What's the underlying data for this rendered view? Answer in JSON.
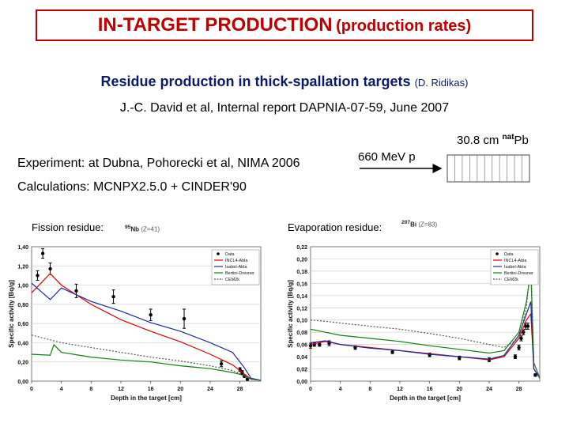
{
  "title": {
    "main": "IN-TARGET PRODUCTION",
    "sub": "(production rates)"
  },
  "subtitle": {
    "text": "Residue production in thick-spallation targets",
    "author": "(D. Ridikas)"
  },
  "reference": "J.-C. David et al, Internal report DAPNIA-07-59, June 2007",
  "experiment": "Experiment: at Dubna, Pohorecki et al, NIMA 2006",
  "calculations": "Calculations: MCNPX2.5.0 + CINDER'90",
  "beam": {
    "label": "660 MeV p"
  },
  "target": {
    "length": "30.8 cm",
    "mass": "nat",
    "element": "Pb"
  },
  "panels": [
    {
      "label": "Fission residue:",
      "nuclide": "95Nb",
      "nuclide_mass": "95",
      "nuclide_symbol": "Nb",
      "nuclide_z": "(Z=41)"
    },
    {
      "label": "Evaporation residue:",
      "nuclide": "207Bi",
      "nuclide_mass": "207",
      "nuclide_symbol": "Bi",
      "nuclide_z": "(Z=83)"
    }
  ],
  "colors": {
    "title": "#c00000",
    "subtitle": "#0a1a66",
    "data": "#000000",
    "incl_abla": "#e00000",
    "isabel_abla": "#1a2a9a",
    "bertini_dresner": "#108010",
    "cem2k": "#555555"
  },
  "chart_data": [
    {
      "type": "line",
      "xlabel": "Depth in the target [cm]",
      "ylabel": "Specific activity [Bq/g]",
      "xlim": [
        0,
        30.8
      ],
      "ylim": [
        0,
        1.4
      ],
      "xticks": [
        "0",
        "4",
        "8",
        "12",
        "16",
        "20",
        "24",
        "28"
      ],
      "yticks": [
        "0,00",
        "0,20",
        "0,40",
        "0,60",
        "0,80",
        "1,00",
        "1,20",
        "1,40"
      ],
      "grid": true,
      "legend": "top-right",
      "series": [
        {
          "name": "Data",
          "style": "points",
          "x": [
            0.8,
            1.5,
            2.5,
            6,
            11,
            16,
            20.5,
            25.5,
            28,
            28.3,
            28.6,
            29
          ],
          "y": [
            1.1,
            1.33,
            1.17,
            0.94,
            0.88,
            0.69,
            0.65,
            0.18,
            0.12,
            0.09,
            0.05,
            0.02
          ],
          "err": [
            0.05,
            0.05,
            0.06,
            0.07,
            0.07,
            0.06,
            0.1,
            0.03,
            0.02,
            0.02,
            0.01,
            0.01
          ]
        },
        {
          "name": "INCL4-Abla",
          "style": "solid",
          "x": [
            0,
            2.5,
            4,
            8,
            12,
            16,
            20,
            24,
            27,
            28.5,
            29.5,
            30.8
          ],
          "y": [
            0.92,
            1.12,
            1.0,
            0.8,
            0.64,
            0.52,
            0.41,
            0.28,
            0.17,
            0.08,
            0.02,
            0.01
          ]
        },
        {
          "name": "Isabel-Abla",
          "style": "solid",
          "x": [
            0,
            2.5,
            4,
            8,
            12,
            16,
            20,
            24,
            27,
            28.5,
            29.5,
            30.8
          ],
          "y": [
            1.02,
            0.85,
            0.97,
            0.83,
            0.73,
            0.61,
            0.52,
            0.4,
            0.3,
            0.15,
            0.03,
            0.01
          ]
        },
        {
          "name": "Bertini-Dresner",
          "style": "solid",
          "x": [
            0,
            2.5,
            3,
            4,
            8,
            12,
            16,
            20,
            24,
            27,
            28.5,
            29.5,
            30.8
          ],
          "y": [
            0.28,
            0.27,
            0.38,
            0.3,
            0.25,
            0.22,
            0.2,
            0.16,
            0.13,
            0.09,
            0.06,
            0.02,
            0.01
          ]
        },
        {
          "name": "CEM2k",
          "style": "dotted",
          "x": [
            0,
            2.5,
            4,
            8,
            12,
            16,
            20,
            24,
            27,
            28.5,
            29.5,
            30.8
          ],
          "y": [
            0.48,
            0.43,
            0.4,
            0.35,
            0.3,
            0.25,
            0.21,
            0.16,
            0.11,
            0.06,
            0.02,
            0.01
          ]
        }
      ]
    },
    {
      "type": "line",
      "xlabel": "Depth in the target [cm]",
      "ylabel": "Specific activity [Bq/g]",
      "xlim": [
        0,
        30.8
      ],
      "ylim": [
        0,
        0.22
      ],
      "xticks": [
        "0",
        "4",
        "8",
        "12",
        "16",
        "20",
        "24",
        "28"
      ],
      "yticks": [
        "0,00",
        "0,02",
        "0,04",
        "0,06",
        "0,08",
        "0,10",
        "0,12",
        "0,14",
        "0,16",
        "0,18",
        "0,20",
        "0,22"
      ],
      "grid": true,
      "legend": "top-right",
      "series": [
        {
          "name": "Data",
          "style": "points",
          "x": [
            0,
            0.5,
            1.2,
            2.5,
            6,
            11,
            16,
            20,
            24,
            27.5,
            28,
            28.3,
            28.6,
            28.9,
            29.2,
            29.6,
            30.2
          ],
          "y": [
            0.058,
            0.06,
            0.06,
            0.062,
            0.055,
            0.048,
            0.043,
            0.038,
            0.035,
            0.04,
            0.055,
            0.07,
            0.08,
            0.09,
            0.09,
            0.2,
            0.01
          ],
          "err": [
            0.004,
            0.003,
            0.003,
            0.004,
            0.003,
            0.003,
            0.003,
            0.003,
            0.003,
            0.003,
            0.004,
            0.004,
            0.004,
            0.005,
            0.005,
            0.01,
            0.002
          ]
        },
        {
          "name": "INCL4-Abla",
          "style": "solid",
          "x": [
            0,
            2,
            4,
            8,
            12,
            16,
            20,
            24,
            26,
            28,
            29,
            29.6,
            30,
            30.8
          ],
          "y": [
            0.06,
            0.065,
            0.06,
            0.055,
            0.05,
            0.045,
            0.04,
            0.035,
            0.04,
            0.07,
            0.1,
            0.11,
            0.02,
            0.005
          ]
        },
        {
          "name": "Isabel-Abla",
          "style": "solid",
          "x": [
            0,
            2,
            4,
            8,
            12,
            16,
            20,
            24,
            26,
            28,
            29,
            29.6,
            30,
            30.8
          ],
          "y": [
            0.063,
            0.066,
            0.06,
            0.054,
            0.05,
            0.044,
            0.04,
            0.036,
            0.042,
            0.075,
            0.11,
            0.13,
            0.02,
            0.005
          ]
        },
        {
          "name": "Bertini-Dresner",
          "style": "solid",
          "x": [
            0,
            2,
            4,
            8,
            12,
            16,
            20,
            24,
            26,
            28,
            29,
            29.6,
            30,
            30.8
          ],
          "y": [
            0.085,
            0.08,
            0.075,
            0.07,
            0.065,
            0.058,
            0.052,
            0.046,
            0.05,
            0.08,
            0.13,
            0.18,
            0.03,
            0.005
          ]
        },
        {
          "name": "CEM2k",
          "style": "dotted",
          "x": [
            0,
            2,
            4,
            8,
            12,
            16,
            20,
            24,
            26,
            28,
            29,
            29.6,
            30,
            30.8
          ],
          "y": [
            0.1,
            0.098,
            0.095,
            0.09,
            0.085,
            0.078,
            0.07,
            0.06,
            0.055,
            0.07,
            0.12,
            0.2,
            0.03,
            0.005
          ]
        }
      ]
    }
  ]
}
